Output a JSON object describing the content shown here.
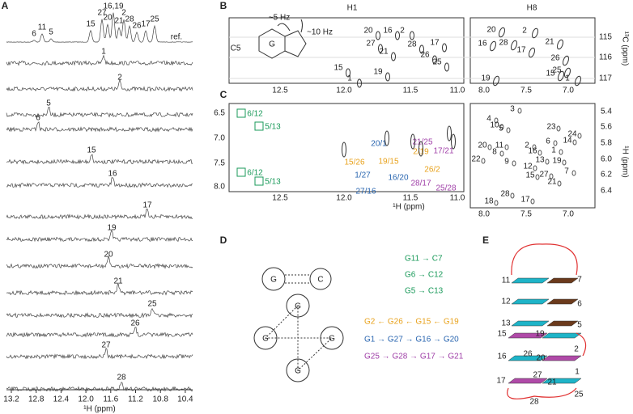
{
  "panel_labels": [
    "A",
    "B",
    "C",
    "D",
    "E"
  ],
  "A": {
    "ref_peaks": [
      "6",
      "11",
      "5",
      "15",
      "27",
      "20",
      "16,19",
      "21",
      "2",
      "28",
      "26",
      "17",
      "25"
    ],
    "ref_label": "ref.",
    "rows": [
      "1",
      "2",
      "5",
      "6",
      "15",
      "16",
      "17",
      "19",
      "20",
      "21",
      "25",
      "26",
      "27",
      "28"
    ],
    "x_ticks": [
      "13.2",
      "12.8",
      "12.4",
      "12.0",
      "11.6",
      "11.2",
      "10.8",
      "10.4"
    ],
    "x_axis_label": "¹H (ppm)"
  },
  "B": {
    "titles": [
      "H1",
      "H8"
    ],
    "row_label": "C5",
    "coupling": [
      "~5 Hz",
      "~10 Hz"
    ],
    "base": "G",
    "h1_peaks": [
      "20",
      "16",
      "2",
      "27",
      "28",
      "17",
      "21",
      "26",
      "25",
      "15",
      "19",
      "1"
    ],
    "h8_peaks": [
      "20",
      "2",
      "16",
      "28",
      "17",
      "21",
      "26",
      "25",
      "15",
      "19",
      "1"
    ],
    "h1_ticks": [
      "12.5",
      "12.0",
      "11.5",
      "11.0"
    ],
    "h8_ticks": [
      "8.0",
      "7.5",
      "7.0"
    ],
    "c_ticks": [
      "115",
      "116",
      "117"
    ],
    "y_axis_label": "¹³C (ppm)"
  },
  "C": {
    "green": [
      "6/12",
      "5/13",
      "6/12",
      "5/13"
    ],
    "orange": [
      "15/26",
      "19/15",
      "2/19",
      "26/2"
    ],
    "blue": [
      "20/1",
      "1/27",
      "16/20",
      "27/16"
    ],
    "purple": [
      "21/25",
      "17/21",
      "28/17",
      "25/28"
    ],
    "h1_x_ticks": [
      "12.5",
      "12.0",
      "11.5",
      "11.0"
    ],
    "h1_y_ticks": [
      "6.5",
      "7.0",
      "7.5",
      "8.0"
    ],
    "x_axis_label": "¹H (ppm)",
    "h8_peaks": [
      "3",
      "4",
      "10",
      "5",
      "23",
      "24",
      "20",
      "11",
      "2",
      "6",
      "14",
      "8",
      "16",
      "1",
      "22",
      "9",
      "13",
      "19",
      "12",
      "27",
      "15",
      "7",
      "21",
      "18",
      "28",
      "17"
    ],
    "h8_x_ticks": [
      "8.0",
      "7.5",
      "7.0"
    ],
    "h8_y_ticks": [
      "5.4",
      "5.6",
      "5.8",
      "6.0",
      "6.2",
      "6.4"
    ],
    "y_axis_label": "¹H (ppm)"
  },
  "D": {
    "pair_bases": [
      "G",
      "C"
    ],
    "quartet_bases": [
      "G",
      "G",
      "G",
      "G"
    ],
    "green": [
      "G11  →  C7",
      "G6    →  C12",
      "G5    →  C13"
    ],
    "orange": "G2  ←  G26 ← G15 ← G19",
    "blue": "G1  →  G27 → G16 → G20",
    "purple": "G25 → G28 → G17 → G21"
  },
  "E": {
    "labels": [
      "11",
      "7",
      "12",
      "6",
      "13",
      "5",
      "15",
      "19",
      "2",
      "16",
      "26",
      "20",
      "1",
      "27",
      "17",
      "21",
      "25",
      "28"
    ]
  }
}
